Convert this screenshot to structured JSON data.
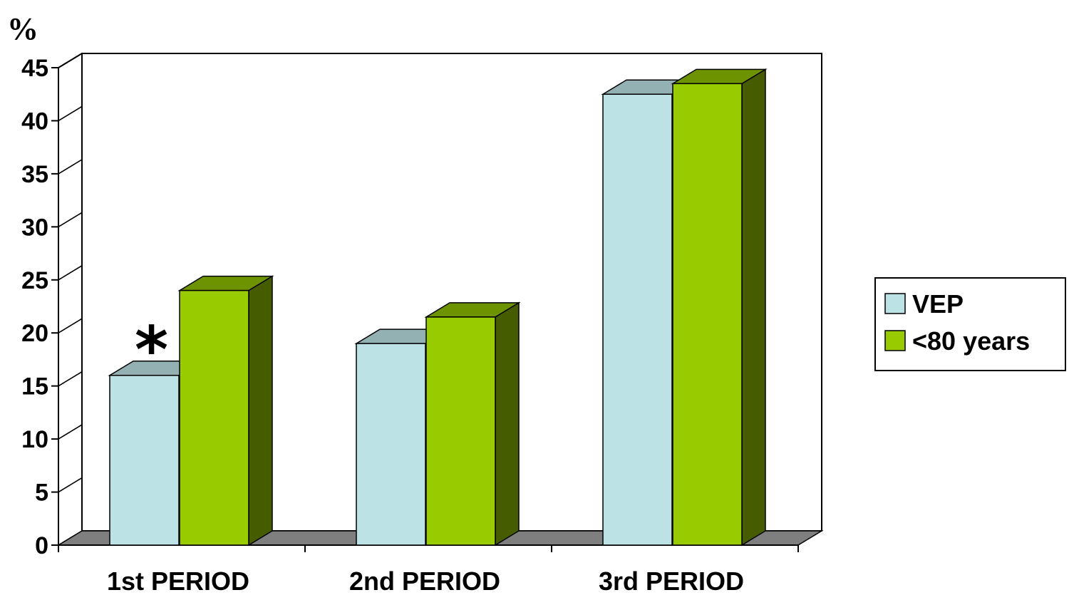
{
  "chart_data": {
    "type": "bar",
    "style": "3d-clustered-column",
    "ylabel": "%",
    "ylim": [
      0,
      45
    ],
    "yticks": [
      0,
      5,
      10,
      15,
      20,
      25,
      30,
      35,
      40,
      45
    ],
    "grid": true,
    "categories": [
      "1st PERIOD",
      "2nd PERIOD",
      "3rd PERIOD"
    ],
    "series": [
      {
        "name": "VEP",
        "color": "#bde2e5",
        "values": [
          16,
          19,
          42.5
        ]
      },
      {
        "name": "<80 years",
        "color": "#99cc00",
        "values": [
          24,
          21.5,
          43.5
        ]
      }
    ],
    "legend": {
      "placement": "right"
    },
    "annotations": [
      {
        "text": "*",
        "category": "1st PERIOD",
        "series": "VEP"
      }
    ]
  }
}
